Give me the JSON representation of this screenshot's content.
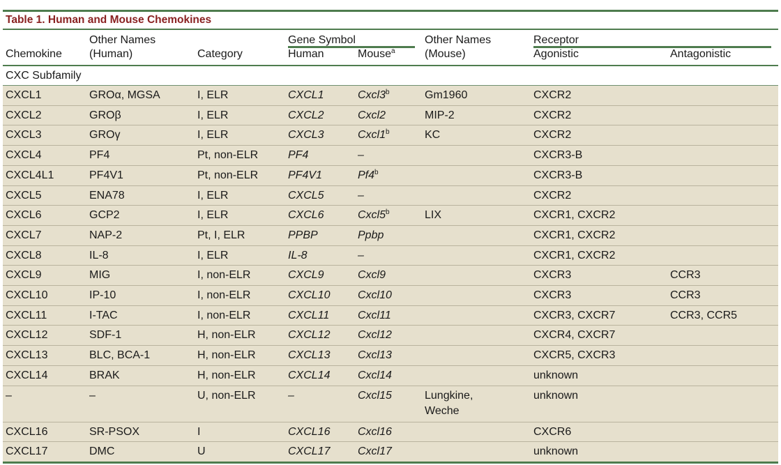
{
  "table": {
    "title": "Table 1.  Human and Mouse Chemokines",
    "headers": {
      "chemokine": "Chemokine",
      "other_names_human_1": "Other Names",
      "other_names_human_2": "(Human)",
      "category": "Category",
      "gene_symbol": "Gene Symbol",
      "human": "Human",
      "mouse": "Mouse",
      "mouse_sup": "a",
      "other_names_mouse_1": "Other Names",
      "other_names_mouse_2": "(Mouse)",
      "receptor": "Receptor",
      "agonistic": "Agonistic",
      "antagonistic": "Antagonistic"
    },
    "subfamily": "CXC Subfamily",
    "rows": [
      {
        "chemokine": "CXCL1",
        "names_human": "GROα, MGSA",
        "category": "I, ELR",
        "gene_human": "CXCL1",
        "gene_mouse": "Cxcl3",
        "mouse_sup": "b",
        "names_mouse": "Gm1960",
        "agonistic": "CXCR2",
        "antagonistic": ""
      },
      {
        "chemokine": "CXCL2",
        "names_human": "GROβ",
        "category": "I, ELR",
        "gene_human": "CXCL2",
        "gene_mouse": "Cxcl2",
        "mouse_sup": "",
        "names_mouse": "MIP-2",
        "agonistic": "CXCR2",
        "antagonistic": ""
      },
      {
        "chemokine": "CXCL3",
        "names_human": "GROγ",
        "category": "I, ELR",
        "gene_human": "CXCL3",
        "gene_mouse": "Cxcl1",
        "mouse_sup": "b",
        "names_mouse": "KC",
        "agonistic": "CXCR2",
        "antagonistic": ""
      },
      {
        "chemokine": "CXCL4",
        "names_human": "PF4",
        "category": "Pt, non-ELR",
        "gene_human": "PF4",
        "gene_mouse": "–",
        "mouse_sup": "",
        "names_mouse": "",
        "agonistic": "CXCR3-B",
        "antagonistic": ""
      },
      {
        "chemokine": "CXCL4L1",
        "names_human": "PF4V1",
        "category": "Pt, non-ELR",
        "gene_human": "PF4V1",
        "gene_mouse": "Pf4",
        "mouse_sup": "b",
        "names_mouse": "",
        "agonistic": "CXCR3-B",
        "antagonistic": ""
      },
      {
        "chemokine": "CXCL5",
        "names_human": "ENA78",
        "category": "I, ELR",
        "gene_human": "CXCL5",
        "gene_mouse": "–",
        "mouse_sup": "",
        "names_mouse": "",
        "agonistic": "CXCR2",
        "antagonistic": ""
      },
      {
        "chemokine": "CXCL6",
        "names_human": "GCP2",
        "category": "I, ELR",
        "gene_human": "CXCL6",
        "gene_mouse": "Cxcl5",
        "mouse_sup": "b",
        "names_mouse": "LIX",
        "agonistic": "CXCR1, CXCR2",
        "antagonistic": ""
      },
      {
        "chemokine": "CXCL7",
        "names_human": "NAP-2",
        "category": "Pt, I, ELR",
        "gene_human": "PPBP",
        "gene_mouse": "Ppbp",
        "mouse_sup": "",
        "names_mouse": "",
        "agonistic": "CXCR1, CXCR2",
        "antagonistic": ""
      },
      {
        "chemokine": "CXCL8",
        "names_human": "IL-8",
        "category": "I, ELR",
        "gene_human": "IL-8",
        "gene_mouse": "–",
        "mouse_sup": "",
        "names_mouse": "",
        "agonistic": "CXCR1, CXCR2",
        "antagonistic": ""
      },
      {
        "chemokine": "CXCL9",
        "names_human": "MIG",
        "category": "I, non-ELR",
        "gene_human": "CXCL9",
        "gene_mouse": "Cxcl9",
        "mouse_sup": "",
        "names_mouse": "",
        "agonistic": "CXCR3",
        "antagonistic": "CCR3"
      },
      {
        "chemokine": "CXCL10",
        "names_human": "IP-10",
        "category": "I, non-ELR",
        "gene_human": "CXCL10",
        "gene_mouse": "Cxcl10",
        "mouse_sup": "",
        "names_mouse": "",
        "agonistic": "CXCR3",
        "antagonistic": "CCR3"
      },
      {
        "chemokine": "CXCL11",
        "names_human": "I-TAC",
        "category": "I, non-ELR",
        "gene_human": "CXCL11",
        "gene_mouse": "Cxcl11",
        "mouse_sup": "",
        "names_mouse": "",
        "agonistic": "CXCR3, CXCR7",
        "antagonistic": "CCR3, CCR5"
      },
      {
        "chemokine": "CXCL12",
        "names_human": "SDF-1",
        "category": "H, non-ELR",
        "gene_human": "CXCL12",
        "gene_mouse": "Cxcl12",
        "mouse_sup": "",
        "names_mouse": "",
        "agonistic": "CXCR4, CXCR7",
        "antagonistic": ""
      },
      {
        "chemokine": "CXCL13",
        "names_human": "BLC, BCA-1",
        "category": "H, non-ELR",
        "gene_human": "CXCL13",
        "gene_mouse": "Cxcl13",
        "mouse_sup": "",
        "names_mouse": "",
        "agonistic": "CXCR5, CXCR3",
        "antagonistic": ""
      },
      {
        "chemokine": "CXCL14",
        "names_human": "BRAK",
        "category": "H, non-ELR",
        "gene_human": "CXCL14",
        "gene_mouse": "Cxcl14",
        "mouse_sup": "",
        "names_mouse": "",
        "agonistic": "unknown",
        "antagonistic": ""
      },
      {
        "chemokine": "–",
        "names_human": "–",
        "category": "U, non-ELR",
        "gene_human": "–",
        "gene_mouse": "Cxcl15",
        "mouse_sup": "",
        "names_mouse": "Lungkine,",
        "names_mouse_2": "Weche",
        "agonistic": "unknown",
        "antagonistic": ""
      },
      {
        "chemokine": "CXCL16",
        "names_human": "SR-PSOX",
        "category": "I",
        "gene_human": "CXCL16",
        "gene_mouse": "Cxcl16",
        "mouse_sup": "",
        "names_mouse": "",
        "agonistic": "CXCR6",
        "antagonistic": ""
      },
      {
        "chemokine": "CXCL17",
        "names_human": "DMC",
        "category": "U",
        "gene_human": "CXCL17",
        "gene_mouse": "Cxcl17",
        "mouse_sup": "",
        "names_mouse": "",
        "agonistic": "unknown",
        "antagonistic": ""
      }
    ]
  }
}
